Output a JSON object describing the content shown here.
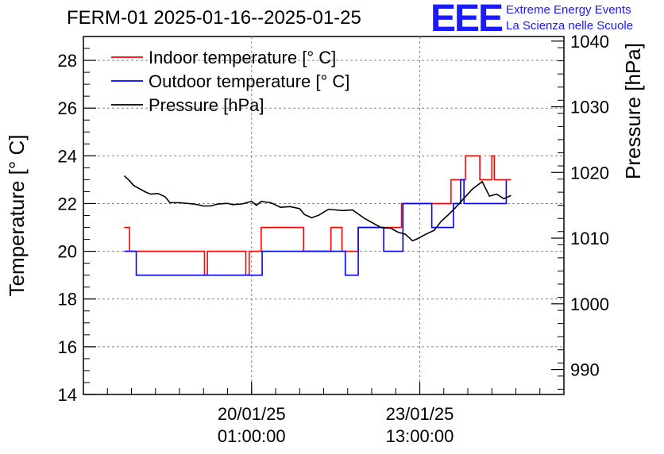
{
  "header": {
    "title": "FERM-01 2025-01-16--2025-01-25",
    "logo_text": "EEE",
    "logo_line1": "Extreme Energy Events",
    "logo_line2": "La Scienza nelle Scuole"
  },
  "chart_data": {
    "type": "line",
    "ylabel_left": "Temperature [° C]",
    "ylabel_right": "Pressure [hPa]",
    "y_left_lim": [
      14,
      29
    ],
    "y_left_ticks": [
      14,
      16,
      18,
      20,
      22,
      24,
      26,
      28
    ],
    "y_right_lim": [
      986.2,
      1040.7
    ],
    "y_right_ticks": [
      990,
      1000,
      1010,
      1020,
      1030,
      1040
    ],
    "x_ticks": [
      {
        "t": 3.5,
        "date": "20/01/25",
        "time": "01:00:00"
      },
      {
        "t": 7.0,
        "date": "23/01/25",
        "time": "13:00:00"
      }
    ],
    "x_lim": [
      0,
      10
    ],
    "grid": true,
    "legend_position": "top-left",
    "colors": {
      "indoor": "#ff0000",
      "outdoor": "#0000ff",
      "pressure": "#000000"
    },
    "series": [
      {
        "name": "Indoor temperature [° C]",
        "axis": "left",
        "x": [
          0.85,
          0.95,
          0.96,
          2.5,
          2.52,
          2.58,
          3.35,
          3.38,
          3.45,
          3.7,
          4.55,
          4.58,
          5.15,
          5.35,
          5.38,
          5.72,
          5.97,
          6.62,
          7.65,
          7.9,
          7.95,
          8.25,
          8.35,
          8.5,
          8.55,
          8.9
        ],
        "values": [
          21,
          21,
          20,
          20,
          19,
          20,
          20,
          19,
          20,
          21,
          21,
          20,
          21,
          21,
          20,
          21,
          21,
          22,
          23,
          23,
          24,
          23,
          23,
          24,
          23,
          23
        ]
      },
      {
        "name": "Outdoor temperature [° C]",
        "axis": "left",
        "x": [
          0.85,
          1.05,
          1.1,
          3.7,
          3.72,
          5.35,
          5.45,
          5.65,
          5.72,
          6.2,
          6.25,
          6.6,
          6.65,
          7.25,
          7.7,
          7.85,
          7.92,
          8.8
        ],
        "values": [
          20,
          20,
          19,
          19,
          20,
          20,
          19,
          19,
          21,
          21,
          20,
          20,
          22,
          21,
          22,
          23,
          22,
          23
        ]
      },
      {
        "name": "Pressure [hPa]",
        "axis": "right",
        "x": [
          0.85,
          0.95,
          1.05,
          1.15,
          1.3,
          1.4,
          1.55,
          1.7,
          1.8,
          2.0,
          2.3,
          2.5,
          2.65,
          2.8,
          3.0,
          3.1,
          3.3,
          3.5,
          3.6,
          3.7,
          3.9,
          4.1,
          4.3,
          4.5,
          4.6,
          4.75,
          4.9,
          5.1,
          5.4,
          5.6,
          5.85,
          6.0,
          6.2,
          6.4,
          6.55,
          6.7,
          6.85,
          6.95,
          7.1,
          7.3,
          7.45,
          7.6,
          7.75,
          7.9,
          8.1,
          8.3,
          8.45,
          8.6,
          8.75,
          8.9
        ],
        "values": [
          1019.5,
          1018.8,
          1018.0,
          1017.6,
          1017.0,
          1016.7,
          1016.8,
          1016.3,
          1015.4,
          1015.4,
          1015.2,
          1014.9,
          1014.9,
          1015.2,
          1015.3,
          1015.1,
          1015.2,
          1015.6,
          1015.0,
          1015.6,
          1015.4,
          1014.7,
          1014.8,
          1014.5,
          1013.6,
          1013.1,
          1013.5,
          1014.4,
          1014.2,
          1014.3,
          1013.0,
          1012.4,
          1011.6,
          1011.5,
          1010.9,
          1010.6,
          1009.6,
          1009.9,
          1010.5,
          1011.2,
          1012.6,
          1013.6,
          1014.7,
          1015.9,
          1017.5,
          1018.6,
          1016.4,
          1016.7,
          1016.0,
          1016.5
        ]
      }
    ]
  }
}
